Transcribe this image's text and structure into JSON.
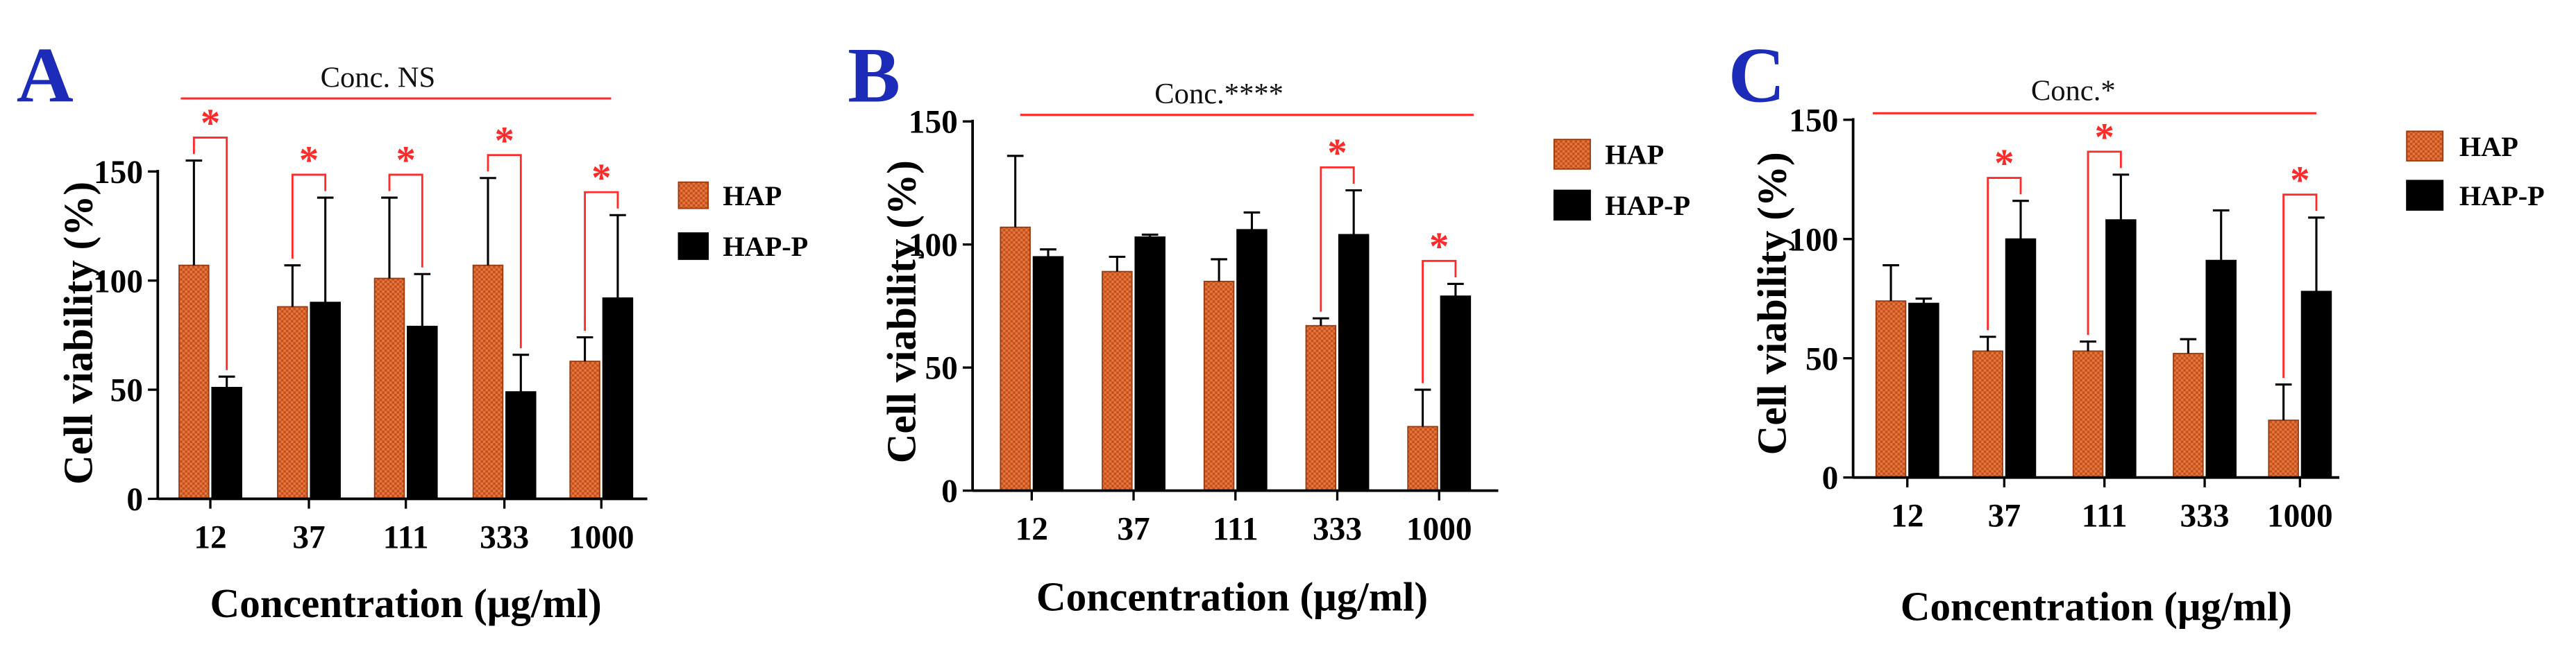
{
  "colors": {
    "background": "#ffffff",
    "hap_fill": "#e8763c",
    "hap_texture": "#c0501e",
    "hap_border": "#9a3c12",
    "hap_p_fill": "#000000",
    "axis": "#000000",
    "significance": "#ff2a2a",
    "panel_letter": "#1c2bb8"
  },
  "chart_data": [
    {
      "panel": "A",
      "type": "bar",
      "annotation": "Conc. NS",
      "categories": [
        "12",
        "37",
        "111",
        "333",
        "1000"
      ],
      "series": [
        {
          "name": "HAP",
          "values": [
            107,
            88,
            101,
            107,
            63
          ],
          "errors": [
            48,
            19,
            37,
            40,
            11
          ]
        },
        {
          "name": "HAP-P",
          "values": [
            51,
            90,
            79,
            49,
            92
          ],
          "errors": [
            5,
            48,
            24,
            17,
            38
          ]
        }
      ],
      "xlabel": "Concentration (μg/ml)",
      "ylabel": "Cell viability (%)",
      "ylim": [
        0,
        150
      ],
      "yticks": [
        0,
        50,
        100,
        150
      ],
      "significance_symbol": "*",
      "significant": [
        true,
        true,
        true,
        true,
        true
      ],
      "legend_position": "right"
    },
    {
      "panel": "B",
      "type": "bar",
      "annotation": "Conc.****",
      "categories": [
        "12",
        "37",
        "111",
        "333",
        "1000"
      ],
      "series": [
        {
          "name": "HAP",
          "values": [
            107,
            89,
            85,
            67,
            26
          ],
          "errors": [
            29,
            6,
            9,
            3,
            15
          ]
        },
        {
          "name": "HAP-P",
          "values": [
            95,
            103,
            106,
            104,
            79
          ],
          "errors": [
            3,
            1,
            7,
            18,
            5
          ]
        }
      ],
      "xlabel": "Concentration (μg/ml)",
      "ylabel": "Cell viability (%)",
      "ylim": [
        0,
        150
      ],
      "yticks": [
        0,
        50,
        100,
        150
      ],
      "significance_symbol": "*",
      "significant": [
        false,
        false,
        false,
        true,
        true
      ],
      "legend_position": "right"
    },
    {
      "panel": "C",
      "type": "bar",
      "annotation": "Conc.*",
      "categories": [
        "12",
        "37",
        "111",
        "333",
        "1000"
      ],
      "series": [
        {
          "name": "HAP",
          "values": [
            74,
            53,
            53,
            52,
            24
          ],
          "errors": [
            15,
            6,
            4,
            6,
            15
          ]
        },
        {
          "name": "HAP-P",
          "values": [
            73,
            100,
            108,
            91,
            78
          ],
          "errors": [
            2,
            16,
            19,
            21,
            31
          ]
        }
      ],
      "xlabel": "Concentration (μg/ml)",
      "ylabel": "Cell viability (%)",
      "ylim": [
        0,
        150
      ],
      "yticks": [
        0,
        50,
        100,
        150
      ],
      "significance_symbol": "*",
      "significant": [
        false,
        true,
        true,
        false,
        true
      ],
      "legend_position": "right"
    }
  ]
}
